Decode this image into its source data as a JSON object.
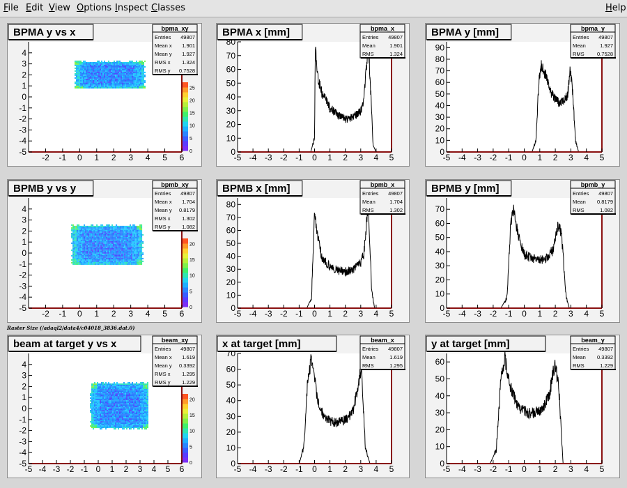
{
  "menu": {
    "file": "File",
    "edit": "Edit",
    "view": "View",
    "options": "Options",
    "inspect": "Inspect",
    "classes": "Classes",
    "help": "Help"
  },
  "canvas_caption": "Raster Size (/adaql2/data4/c04018_3836.dat.0)",
  "colors": {
    "line": "#000000",
    "frame": "#8a1010",
    "pad": "#f2f2f2"
  },
  "chart_data": [
    {
      "id": "bpma_xy",
      "type": "heatmap",
      "title": "BPMA y vs x",
      "stats": [
        [
          "Entries",
          "49807"
        ],
        [
          "Mean x",
          "1.901"
        ],
        [
          "Mean y",
          "1.927"
        ],
        [
          "RMS x",
          "1.324"
        ],
        [
          "RMS y",
          "0.7528"
        ]
      ],
      "xlim": [
        -3,
        6
      ],
      "ylim": [
        -5,
        5
      ],
      "xticks": [
        "-2",
        "-1",
        "0",
        "1",
        "2",
        "3",
        "4",
        "5",
        "6"
      ],
      "yticks": [
        "-5",
        "-4",
        "-3",
        "-2",
        "-1",
        "0",
        "1",
        "2",
        "3",
        "4"
      ],
      "region": {
        "x": [
          -0.3,
          3.8
        ],
        "y": [
          0.8,
          3.3
        ]
      },
      "zticks": [
        "0",
        "5",
        "10",
        "15",
        "20",
        "25"
      ]
    },
    {
      "id": "bpma_x",
      "type": "line",
      "title": "BPMA x [mm]",
      "stats": [
        [
          "Entries",
          "49807"
        ],
        [
          "Mean",
          "1.901"
        ],
        [
          "RMS",
          "1.324"
        ]
      ],
      "xlim": [
        -5,
        5
      ],
      "ylim": [
        0,
        80
      ],
      "xticks": [
        "-5",
        "-4",
        "-3",
        "-2",
        "-1",
        "0",
        "1",
        "2",
        "3",
        "4",
        "5"
      ],
      "yticks": [
        "0",
        "10",
        "20",
        "30",
        "40",
        "50",
        "60",
        "70",
        "80"
      ],
      "x": [
        -0.25,
        0,
        0.05,
        0.2,
        0.5,
        1,
        1.5,
        2,
        2.5,
        3,
        3.2,
        3.35,
        3.5,
        3.6,
        3.8,
        4
      ],
      "values": [
        0,
        10,
        75,
        55,
        42,
        32,
        27,
        24,
        25,
        30,
        38,
        58,
        80,
        55,
        5,
        0
      ]
    },
    {
      "id": "bpma_y",
      "type": "line",
      "title": "BPMA y [mm]",
      "stats": [
        [
          "Entries",
          "49807"
        ],
        [
          "Mean",
          "1.927"
        ],
        [
          "RMS",
          "0.7528"
        ]
      ],
      "xlim": [
        -5,
        5
      ],
      "ylim": [
        0,
        95
      ],
      "xticks": [
        "-5",
        "-4",
        "-3",
        "-2",
        "-1",
        "0",
        "1",
        "2",
        "3",
        "4",
        "5"
      ],
      "yticks": [
        "0",
        "10",
        "20",
        "30",
        "40",
        "50",
        "60",
        "70",
        "80",
        "90"
      ],
      "x": [
        0.5,
        0.75,
        0.95,
        1.1,
        1.4,
        1.7,
        2,
        2.3,
        2.6,
        2.8,
        2.95,
        3.1,
        3.3,
        3.5
      ],
      "values": [
        0,
        10,
        62,
        75,
        65,
        52,
        45,
        43,
        45,
        50,
        72,
        55,
        10,
        0
      ]
    },
    {
      "id": "bpmb_xy",
      "type": "heatmap",
      "title": "BPMB y vs y",
      "stats": [
        [
          "Entries",
          "49807"
        ],
        [
          "Mean x",
          "1.704"
        ],
        [
          "Mean y",
          "0.8179"
        ],
        [
          "RMS x",
          "1.302"
        ],
        [
          "RMS y",
          "1.082"
        ]
      ],
      "xlim": [
        -3,
        6
      ],
      "ylim": [
        -5,
        5
      ],
      "xticks": [
        "-2",
        "-1",
        "0",
        "1",
        "2",
        "3",
        "4",
        "5",
        "6"
      ],
      "yticks": [
        "-5",
        "-4",
        "-3",
        "-2",
        "-1",
        "0",
        "1",
        "2",
        "3",
        "4"
      ],
      "region": {
        "x": [
          -0.5,
          3.7
        ],
        "y": [
          -1.0,
          2.6
        ]
      },
      "zticks": [
        "0",
        "5",
        "10",
        "15",
        "20"
      ]
    },
    {
      "id": "bpmb_x",
      "type": "line",
      "title": "BPMB x [mm]",
      "stats": [
        [
          "Entries",
          "49807"
        ],
        [
          "Mean",
          "1.704"
        ],
        [
          "RMS",
          "1.302"
        ]
      ],
      "xlim": [
        -5,
        5
      ],
      "ylim": [
        0,
        85
      ],
      "xticks": [
        "-5",
        "-4",
        "-3",
        "-2",
        "-1",
        "0",
        "1",
        "2",
        "3",
        "4",
        "5"
      ],
      "yticks": [
        "0",
        "10",
        "20",
        "30",
        "40",
        "50",
        "60",
        "70",
        "80"
      ],
      "x": [
        -0.5,
        -0.2,
        0,
        0.2,
        0.5,
        1,
        1.5,
        2,
        2.5,
        3,
        3.2,
        3.35,
        3.5,
        3.7,
        3.9
      ],
      "values": [
        0,
        8,
        72,
        55,
        38,
        32,
        29,
        28,
        30,
        35,
        42,
        62,
        80,
        15,
        0
      ]
    },
    {
      "id": "bpmb_y",
      "type": "line",
      "title": "BPMB y [mm]",
      "stats": [
        [
          "Entries",
          "49807"
        ],
        [
          "Mean",
          "0.8179"
        ],
        [
          "RMS",
          "1.082"
        ]
      ],
      "xlim": [
        -5,
        5
      ],
      "ylim": [
        0,
        78
      ],
      "xticks": [
        "-5",
        "-4",
        "-3",
        "-2",
        "-1",
        "0",
        "1",
        "2",
        "3",
        "4",
        "5"
      ],
      "yticks": [
        "0",
        "10",
        "20",
        "30",
        "40",
        "50",
        "60",
        "70"
      ],
      "x": [
        -1.5,
        -1.1,
        -0.9,
        -0.7,
        -0.3,
        0,
        0.5,
        1,
        1.5,
        1.9,
        2.2,
        2.4,
        2.7,
        2.9
      ],
      "values": [
        0,
        8,
        55,
        70,
        48,
        38,
        35,
        34,
        36,
        42,
        60,
        52,
        8,
        0
      ]
    },
    {
      "id": "beam_xy",
      "type": "heatmap",
      "title": "beam at target y vs x",
      "stats": [
        [
          "Entries",
          "49807"
        ],
        [
          "Mean x",
          "1.619"
        ],
        [
          "Mean y",
          "0.3392"
        ],
        [
          "RMS x",
          "1.295"
        ],
        [
          "RMS y",
          "1.229"
        ]
      ],
      "xlim": [
        -5,
        6
      ],
      "ylim": [
        -5,
        5
      ],
      "xticks": [
        "-5",
        "-4",
        "-3",
        "-2",
        "-1",
        "0",
        "1",
        "2",
        "3",
        "4",
        "5",
        "6"
      ],
      "yticks": [
        "-5",
        "-4",
        "-3",
        "-2",
        "-1",
        "0",
        "1",
        "2",
        "3",
        "4"
      ],
      "region": {
        "x": [
          -0.6,
          3.6
        ],
        "y": [
          -1.8,
          2.4
        ]
      },
      "zticks": [
        "0",
        "5",
        "10",
        "15",
        "20"
      ]
    },
    {
      "id": "beam_x",
      "type": "line",
      "title": "x at target [mm]",
      "stats": [
        [
          "Entries",
          "49807"
        ],
        [
          "Mean",
          "1.619"
        ],
        [
          "RMS",
          "1.295"
        ]
      ],
      "xlim": [
        -5,
        5
      ],
      "ylim": [
        0,
        70
      ],
      "xticks": [
        "-5",
        "-4",
        "-3",
        "-2",
        "-1",
        "0",
        "1",
        "2",
        "3",
        "4",
        "5"
      ],
      "yticks": [
        "0",
        "10",
        "20",
        "30",
        "40",
        "50",
        "60",
        "70"
      ],
      "x": [
        -1,
        -0.7,
        -0.45,
        -0.2,
        0.2,
        0.6,
        1,
        1.5,
        2,
        2.5,
        2.8,
        3.05,
        3.3,
        3.6
      ],
      "values": [
        0,
        10,
        52,
        67,
        40,
        30,
        27,
        26,
        28,
        33,
        48,
        62,
        10,
        0
      ]
    },
    {
      "id": "beam_y",
      "type": "line",
      "title": "y at target [mm]",
      "stats": [
        [
          "Entries",
          "49807"
        ],
        [
          "Mean",
          "0.3392"
        ],
        [
          "RMS",
          "1.229"
        ]
      ],
      "xlim": [
        -5,
        5
      ],
      "ylim": [
        0,
        65
      ],
      "xticks": [
        "-5",
        "-4",
        "-3",
        "-2",
        "-1",
        "0",
        "1",
        "2",
        "3",
        "4",
        "5"
      ],
      "yticks": [
        "0",
        "10",
        "20",
        "30",
        "40",
        "50",
        "60"
      ],
      "x": [
        -2.2,
        -1.8,
        -1.5,
        -1.25,
        -0.8,
        -0.3,
        0.2,
        0.7,
        1.2,
        1.6,
        1.95,
        2.2,
        2.5
      ],
      "values": [
        0,
        8,
        50,
        62,
        42,
        33,
        30,
        30,
        32,
        40,
        58,
        48,
        0
      ]
    }
  ]
}
